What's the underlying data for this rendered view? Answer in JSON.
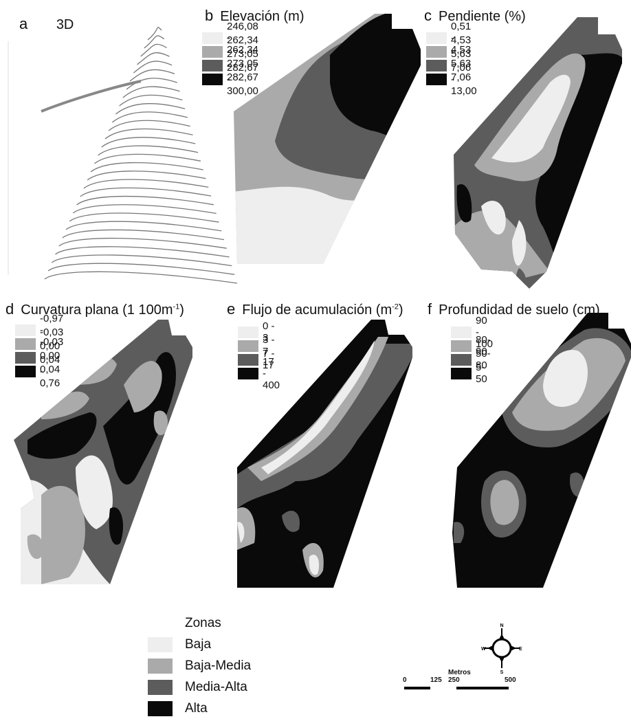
{
  "colors": {
    "c1": "#eeeeee",
    "c2": "#aaaaaa",
    "c3": "#5c5c5c",
    "c4": "#0a0a0a"
  },
  "panels": {
    "a": {
      "letter": "a",
      "title": "3D"
    },
    "b": {
      "letter": "b",
      "title": "Elevación (m)",
      "legend": [
        "246,08 - 262,34",
        "262,34 - 273,05",
        "273,05 - 282,67",
        "282,67 - 300,00"
      ]
    },
    "c": {
      "letter": "c",
      "title": "Pendiente (%)",
      "legend": [
        "0,51 - 4,53",
        "4,53 - 5,63",
        "5,63 - 7,06",
        "7,06 - 13,00"
      ]
    },
    "d": {
      "letter": "d",
      "title": "Curvatura plana (1 100m",
      "sup": "-1",
      "title_end": ")",
      "legend": [
        "-0,97 - -0,03",
        "-0,03 - 0,00",
        "0,00 - 0,04",
        "0,04 - 0,76"
      ]
    },
    "e": {
      "letter": "e",
      "title": "Flujo de acumulación (m",
      "sup": "-2",
      "title_end": ")",
      "legend": [
        "0 - 3",
        "3 - 7",
        "7 - 17",
        "17 - 400"
      ]
    },
    "f": {
      "letter": "f",
      "title": "Profundidad de suelo (cm)",
      "legend": [
        "90 - 100",
        "80- 90",
        "50- 80",
        "5- 50"
      ]
    }
  },
  "zonas": {
    "title": "Zonas",
    "items": [
      "Baja",
      "Baja-Media",
      "Media-Alta",
      "Alta"
    ]
  },
  "compass": {
    "n": "N",
    "s": "S",
    "e": "E",
    "w": "W"
  },
  "scale": {
    "unit": "Metros",
    "ticks": [
      "0",
      "125",
      "250",
      "500"
    ]
  }
}
